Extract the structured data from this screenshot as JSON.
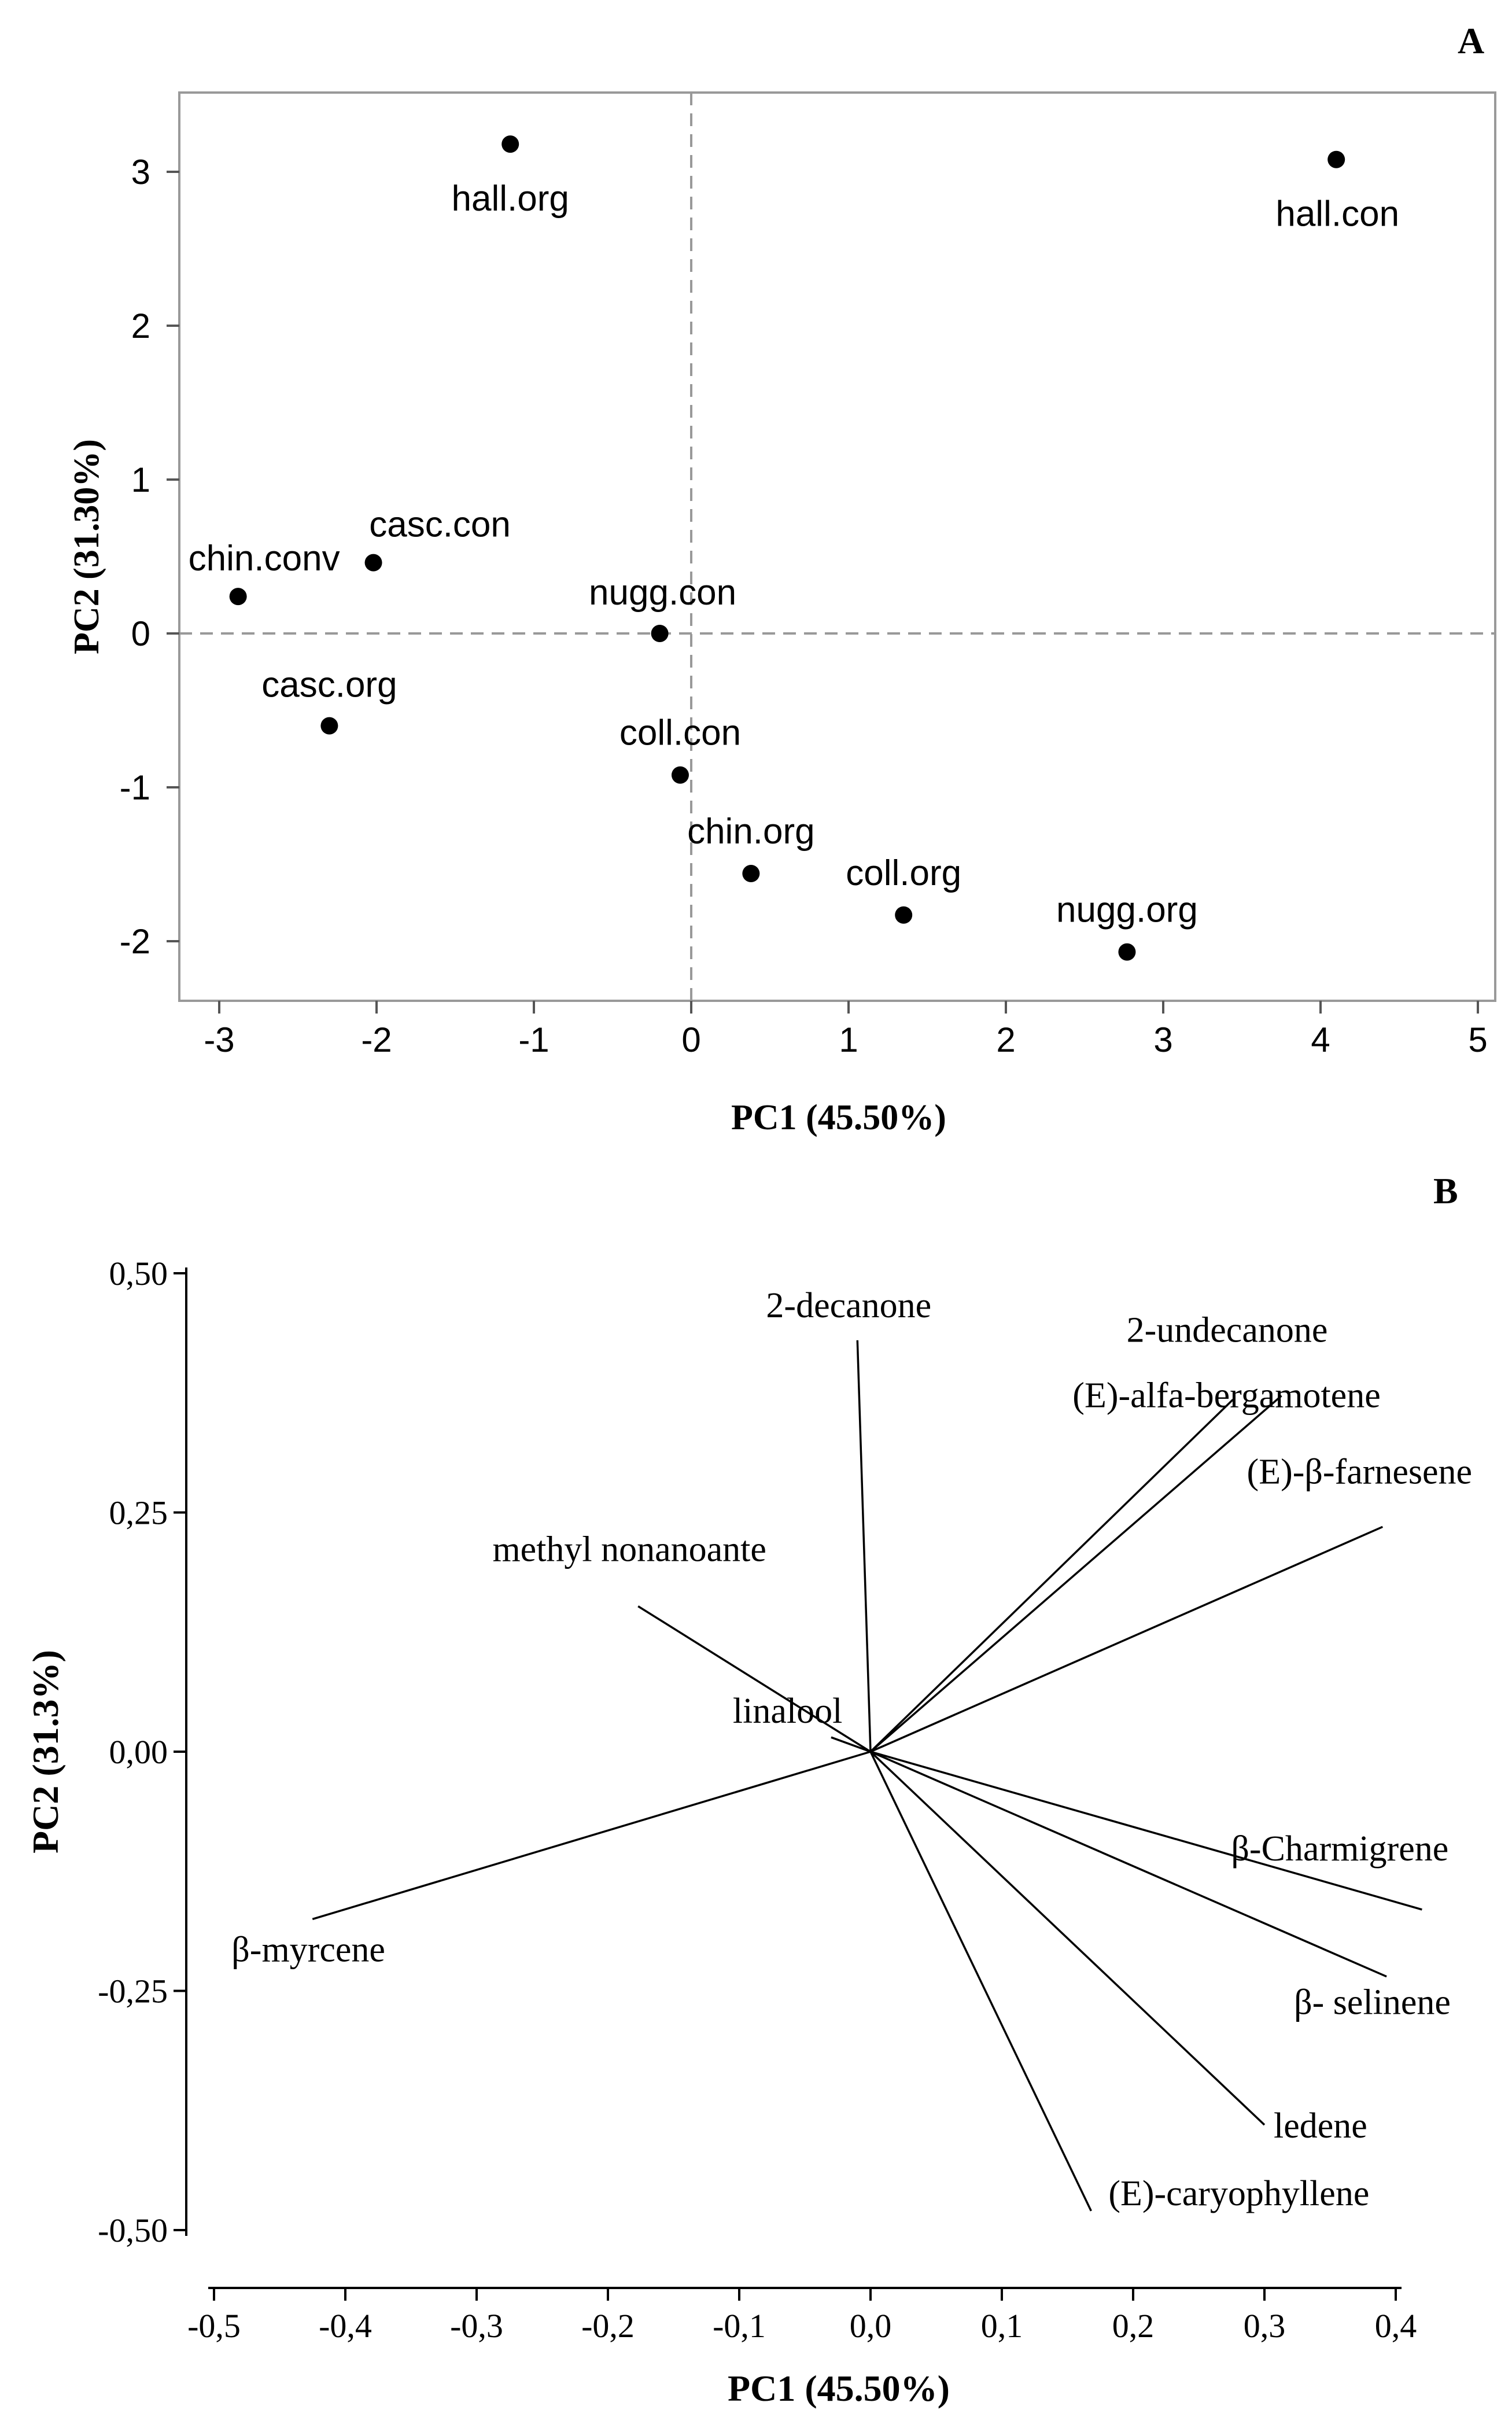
{
  "chart_data": [
    {
      "panel": "A",
      "type": "scatter",
      "xlabel": "PC1 (45.50%)",
      "ylabel": "PC2 (31.30%)",
      "xlim": [
        -3.3,
        5.2
      ],
      "ylim": [
        -2.4,
        3.5
      ],
      "xticks": [
        -3,
        -2,
        -1,
        0,
        1,
        2,
        3,
        4,
        5
      ],
      "xtick_labels": [
        "-3",
        "-2",
        "-1",
        "0",
        "1",
        "2",
        "3",
        "4",
        "5"
      ],
      "yticks": [
        -2,
        -1,
        0,
        1,
        2,
        3
      ],
      "ytick_labels": [
        "-2",
        "-1",
        "0",
        "1",
        "2",
        "3"
      ],
      "reference_lines": {
        "x": 0,
        "y": 0,
        "style": "dashed"
      },
      "points": [
        {
          "label": "hall.org",
          "x": -1.15,
          "y": 3.18
        },
        {
          "label": "hall.con",
          "x": 4.1,
          "y": 3.08
        },
        {
          "label": "casc.con",
          "x": -2.02,
          "y": 0.46
        },
        {
          "label": "chin.conv",
          "x": -2.88,
          "y": 0.24
        },
        {
          "label": "nugg.con",
          "x": -0.2,
          "y": 0.0
        },
        {
          "label": "casc.org",
          "x": -2.3,
          "y": -0.6
        },
        {
          "label": "coll.con",
          "x": -0.07,
          "y": -0.92
        },
        {
          "label": "chin.org",
          "x": 0.38,
          "y": -1.56
        },
        {
          "label": "coll.org",
          "x": 1.35,
          "y": -1.83
        },
        {
          "label": "nugg.org",
          "x": 2.77,
          "y": -2.07
        }
      ]
    },
    {
      "panel": "B",
      "type": "loading_plot",
      "xlabel": "PC1 (45.50%)",
      "ylabel": "PC2 (31.3%)",
      "xlim": [
        -0.52,
        0.44
      ],
      "ylim": [
        -0.53,
        0.52
      ],
      "xticks": [
        -0.5,
        -0.4,
        -0.3,
        -0.2,
        -0.1,
        0.0,
        0.1,
        0.2,
        0.3,
        0.4
      ],
      "xtick_labels": [
        "-0,5",
        "-0,4",
        "-0,3",
        "-0,2",
        "-0,1",
        "0,0",
        "0,1",
        "0,2",
        "0,3",
        "0,4"
      ],
      "yticks": [
        -0.5,
        -0.25,
        0.0,
        0.25,
        0.5
      ],
      "ytick_labels": [
        "-0,50",
        "-0,25",
        "0,00",
        "0,25",
        "0,50"
      ],
      "vectors": [
        {
          "label": "2-decanone",
          "x": -0.01,
          "y": 0.43
        },
        {
          "label": "2-undecanone",
          "x": 0.276,
          "y": 0.368
        },
        {
          "label": "(E)-alfa-bergamotene",
          "x": 0.313,
          "y": 0.372
        },
        {
          "label": "(E)-β-farnesene",
          "x": 0.39,
          "y": 0.235
        },
        {
          "label": "methyl nonanoante",
          "x": -0.177,
          "y": 0.152
        },
        {
          "label": "linalool",
          "x": -0.03,
          "y": 0.015
        },
        {
          "label": "β-Charmigrene",
          "x": 0.42,
          "y": -0.165
        },
        {
          "label": "β-myrcene",
          "x": -0.425,
          "y": -0.175
        },
        {
          "label": "β- selinene",
          "x": 0.393,
          "y": -0.235
        },
        {
          "label": "ledene",
          "x": 0.3,
          "y": -0.39
        },
        {
          "label": "(E)-caryophyllene",
          "x": 0.168,
          "y": -0.48
        }
      ]
    }
  ]
}
